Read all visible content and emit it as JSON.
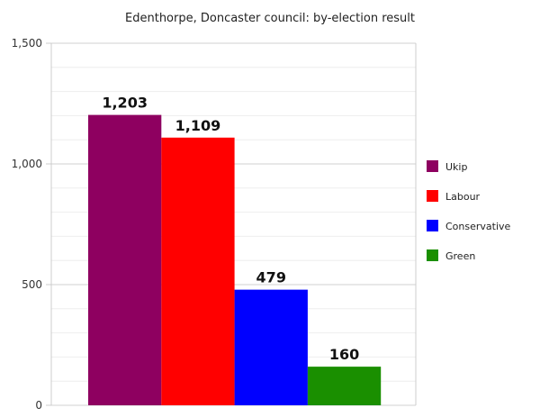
{
  "chart_data": {
    "type": "bar",
    "title": "Edenthorpe, Doncaster council: by-election result",
    "xlabel": "",
    "ylabel": "",
    "ylim": [
      0,
      1500
    ],
    "yticks": [
      0,
      500,
      1000,
      1500
    ],
    "ytick_labels": [
      "0",
      "500",
      "1,000",
      "1,500"
    ],
    "grid": true,
    "legend_position": "right",
    "series": [
      {
        "name": "Ukip",
        "value": 1203,
        "label": "1,203",
        "color": "#8e0060"
      },
      {
        "name": "Labour",
        "value": 1109,
        "label": "1,109",
        "color": "#ff0000"
      },
      {
        "name": "Conservative",
        "value": 479,
        "label": "479",
        "color": "#0000ff"
      },
      {
        "name": "Green",
        "value": 160,
        "label": "160",
        "color": "#1a8f00"
      }
    ]
  }
}
